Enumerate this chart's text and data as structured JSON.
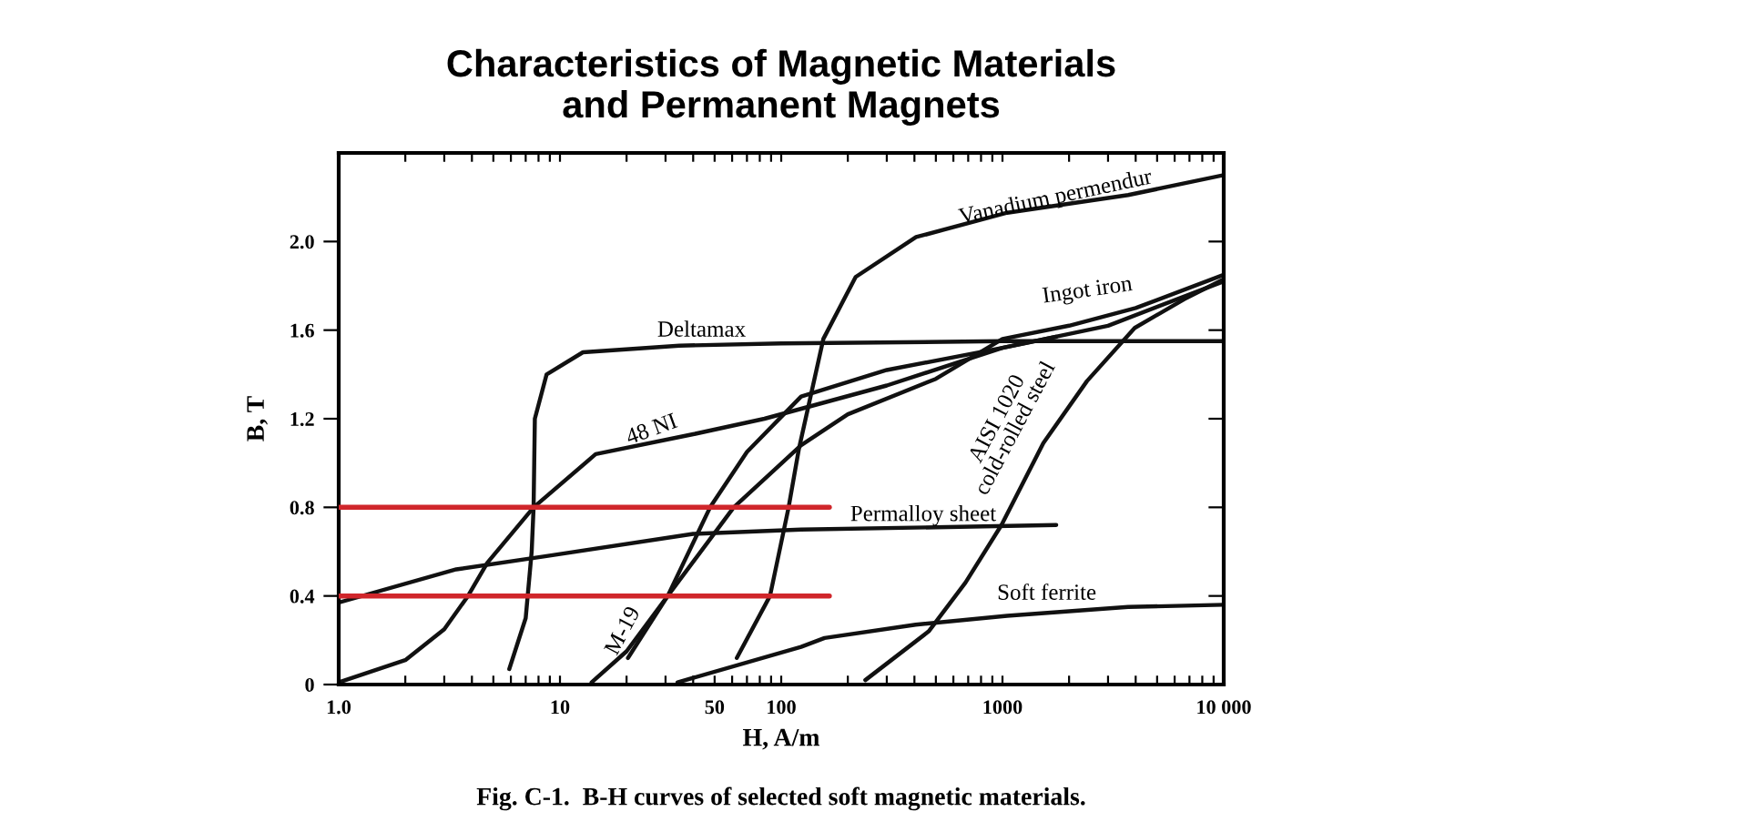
{
  "chart_data": {
    "type": "line",
    "title": "Characteristics of Magnetic Materials\nand Permanent Magnets",
    "xlabel": "H, A/m",
    "ylabel": "B, T",
    "log": "x",
    "xlim": [
      1,
      10000
    ],
    "ylim": [
      0,
      2.4
    ],
    "xticks": [
      {
        "value": 1,
        "label": "1.0"
      },
      {
        "value": 2,
        "label": null
      },
      {
        "value": 3,
        "label": null
      },
      {
        "value": 4,
        "label": null
      },
      {
        "value": 5,
        "label": null
      },
      {
        "value": 6,
        "label": null
      },
      {
        "value": 7,
        "label": null
      },
      {
        "value": 8,
        "label": null
      },
      {
        "value": 9,
        "label": null
      },
      10,
      {
        "value": 20,
        "label": null
      },
      {
        "value": 30,
        "label": null
      },
      {
        "value": 40,
        "label": null
      },
      50,
      {
        "value": 60,
        "label": null
      },
      {
        "value": 70,
        "label": null
      },
      {
        "value": 80,
        "label": null
      },
      {
        "value": 90,
        "label": null
      },
      100,
      {
        "value": 200,
        "label": null
      },
      {
        "value": 300,
        "label": null
      },
      {
        "value": 400,
        "label": null
      },
      {
        "value": 500,
        "label": null
      },
      {
        "value": 600,
        "label": null
      },
      {
        "value": 700,
        "label": null
      },
      {
        "value": 800,
        "label": null
      },
      {
        "value": 900,
        "label": null
      },
      1000,
      {
        "value": 2000,
        "label": null
      },
      {
        "value": 3000,
        "label": null
      },
      {
        "value": 4000,
        "label": null
      },
      {
        "value": 5000,
        "label": null
      },
      {
        "value": 6000,
        "label": null
      },
      {
        "value": 7000,
        "label": null
      },
      {
        "value": 8000,
        "label": null
      },
      {
        "value": 9000,
        "label": null
      },
      {
        "value": 10000,
        "label": "10 000"
      }
    ],
    "yticks": [
      0,
      0.4,
      0.8,
      1.2,
      1.6,
      {
        "value": 2,
        "label": "2.0"
      }
    ],
    "grid": false,
    "legend": false,
    "marker": "none",
    "line_style": "solid",
    "series": [
      {
        "name": "Deltamax",
        "color": "#111111",
        "x": [
          5.9,
          7.0,
          7.45,
          7.6,
          7.7,
          8.7,
          12.7,
          34.6,
          100,
          1000,
          10000
        ],
        "values": [
          0.07,
          0.3,
          0.6,
          0.8,
          1.2,
          1.4,
          1.5,
          1.53,
          1.54,
          1.55,
          1.55
        ]
      },
      {
        "name": "48 NI",
        "color": "#111111",
        "x": [
          1,
          2,
          3,
          3.84,
          4.7,
          7.6,
          14.5,
          40,
          84,
          300,
          1000,
          1750
        ],
        "values": [
          0.01,
          0.11,
          0.25,
          0.4,
          0.55,
          0.8,
          1.04,
          1.13,
          1.2,
          1.35,
          1.52,
          1.57
        ]
      },
      {
        "name": "Permalloy sheet",
        "color": "#111111",
        "x": [
          1,
          3.4,
          8.7,
          40,
          123,
          500,
          1750
        ],
        "values": [
          0.37,
          0.52,
          0.58,
          0.68,
          0.7,
          0.71,
          0.72
        ]
      },
      {
        "name": "M-19",
        "color": "#111111",
        "x": [
          13.9,
          20,
          30.7,
          47.7,
          70,
          123,
          300,
          1000,
          3000,
          10000
        ],
        "values": [
          0.01,
          0.15,
          0.4,
          0.8,
          1.05,
          1.3,
          1.42,
          1.52,
          1.62,
          1.82
        ]
      },
      {
        "name": "Ingot iron",
        "color": "#111111",
        "x": [
          20.3,
          30.7,
          61,
          123,
          200,
          500,
          1000,
          2000,
          4000,
          10000
        ],
        "values": [
          0.12,
          0.4,
          0.8,
          1.08,
          1.22,
          1.38,
          1.56,
          1.62,
          1.7,
          1.85
        ]
      },
      {
        "name": "Vanadium permendur",
        "color": "#111111",
        "x": [
          63,
          89,
          108,
          120,
          155,
          217,
          407,
          1050,
          3700,
          10000
        ],
        "values": [
          0.12,
          0.4,
          0.8,
          1.06,
          1.56,
          1.84,
          2.02,
          2.13,
          2.21,
          2.3
        ]
      },
      {
        "name": "AISI 1020\ncold-rolled steel",
        "color": "#111111",
        "x": [
          240,
          464,
          680,
          990,
          1530,
          2410,
          3960,
          6640,
          10000
        ],
        "values": [
          0.02,
          0.24,
          0.46,
          0.72,
          1.09,
          1.37,
          1.61,
          1.74,
          1.83
        ]
      },
      {
        "name": "Soft ferrite",
        "color": "#111111",
        "x": [
          34,
          123,
          157,
          405,
          1050,
          3700,
          10000
        ],
        "values": [
          0.01,
          0.17,
          0.21,
          0.27,
          0.31,
          0.35,
          0.36
        ]
      },
      {
        "color": "#d0262b",
        "x": [
          1,
          165
        ],
        "values": [
          0.8,
          0.8
        ]
      },
      {
        "color": "#d0262b",
        "x": [
          1,
          165
        ],
        "values": [
          0.4,
          0.4
        ]
      }
    ],
    "annotations": [
      "Fig. C-1.  B-H curves of selected soft magnetic materials."
    ]
  }
}
